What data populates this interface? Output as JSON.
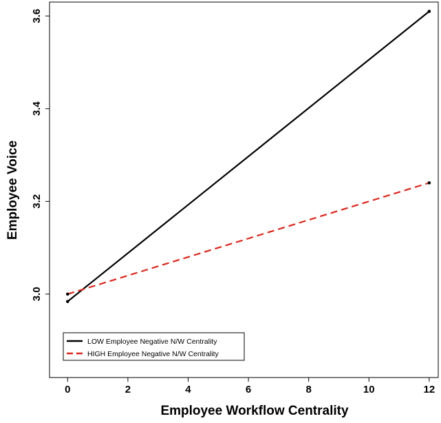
{
  "chart_data": {
    "type": "line",
    "xlabel": "Employee Workflow Centrality",
    "ylabel": "Employee Voice",
    "xlim": [
      -0.6,
      12.3
    ],
    "ylim": [
      2.82,
      3.63
    ],
    "x_ticks": [
      0,
      2,
      4,
      6,
      8,
      10,
      12
    ],
    "y_ticks": [
      3.0,
      3.2,
      3.4,
      3.6
    ],
    "x_tick_labels": [
      "0",
      "2",
      "4",
      "6",
      "8",
      "10",
      "12"
    ],
    "y_tick_labels": [
      "3.0",
      "3.2",
      "3.4",
      "3.6"
    ],
    "grid": false,
    "legend_position": "bottom-left",
    "series": [
      {
        "name": "LOW Employee Negative N/W Centrality",
        "color": "#000000",
        "dash": "solid",
        "x": [
          0,
          12
        ],
        "y": [
          2.984,
          3.61
        ]
      },
      {
        "name": "HIGH Employee Negative N/W Centrality",
        "color": "#d9261c",
        "dash": "dashed",
        "x": [
          0,
          12
        ],
        "y": [
          3.0,
          3.24
        ]
      }
    ]
  }
}
